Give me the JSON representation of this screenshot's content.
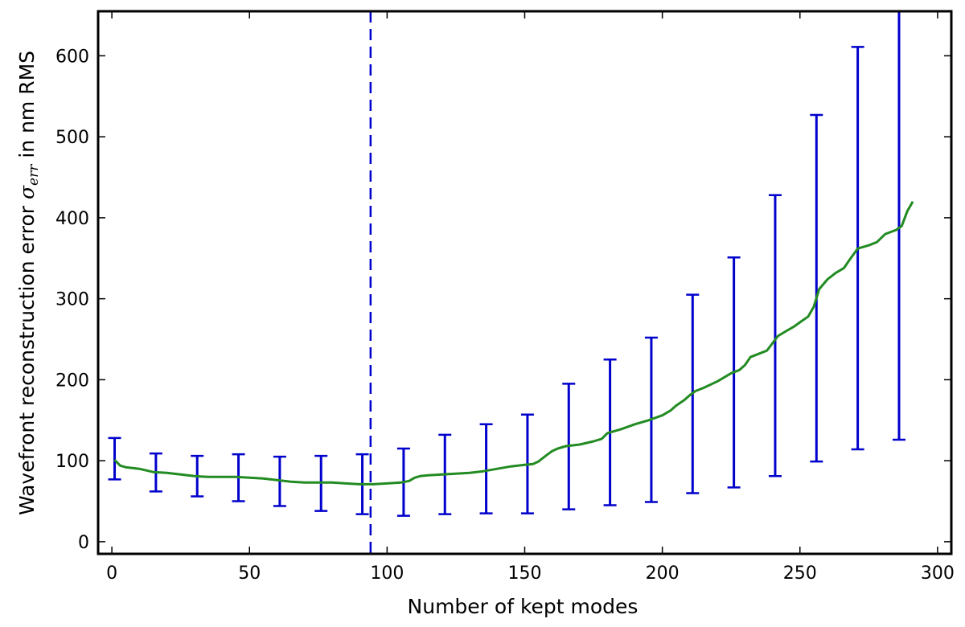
{
  "chart_data": {
    "type": "line",
    "xlabel": "Number of kept modes",
    "ylabel": {
      "prefix": "Wavefront reconstruction error ",
      "symbol": "σ",
      "subscript": "err",
      "suffix": " in nm RMS"
    },
    "xlim": [
      -5,
      305
    ],
    "ylim": [
      -15,
      655
    ],
    "xticks": [
      0,
      50,
      100,
      150,
      200,
      250,
      300
    ],
    "yticks": [
      0,
      100,
      200,
      300,
      400,
      500,
      600
    ],
    "grid": false,
    "colors": {
      "line": "#228b22",
      "errorbars": "#0000cc",
      "vline": "#0000cc",
      "frame": "#000000"
    },
    "vline": {
      "x": 94,
      "style": "dashed"
    },
    "series": [
      {
        "kind": "line",
        "x": [
          1,
          3,
          5,
          10,
          15,
          20,
          25,
          30,
          35,
          40,
          45,
          50,
          55,
          60,
          65,
          70,
          75,
          80,
          85,
          90,
          95,
          100,
          105,
          108,
          110,
          112,
          115,
          120,
          125,
          130,
          135,
          140,
          145,
          150,
          153,
          155,
          158,
          160,
          162,
          165,
          170,
          175,
          178,
          180,
          185,
          190,
          195,
          200,
          203,
          205,
          208,
          210,
          212,
          215,
          220,
          222,
          225,
          228,
          230,
          232,
          235,
          238,
          240,
          242,
          245,
          248,
          250,
          253,
          255,
          257,
          260,
          263,
          266,
          268,
          271,
          275,
          278,
          281,
          285,
          287,
          289,
          291
        ],
        "y": [
          101,
          94,
          92,
          90,
          86,
          85,
          83,
          81,
          80,
          80,
          80,
          79,
          78,
          76,
          74,
          73,
          73,
          73,
          72,
          71,
          71,
          72,
          73,
          75,
          79,
          81,
          82,
          83,
          84,
          85,
          87,
          90,
          93,
          95,
          96,
          99,
          107,
          112,
          115,
          118,
          120,
          124,
          127,
          134,
          139,
          145,
          150,
          156,
          162,
          168,
          175,
          181,
          186,
          190,
          198,
          202,
          208,
          212,
          218,
          228,
          232,
          236,
          245,
          254,
          260,
          266,
          271,
          278,
          290,
          312,
          324,
          332,
          338,
          348,
          362,
          366,
          370,
          380,
          385,
          390,
          408,
          420
        ]
      },
      {
        "kind": "errorbar",
        "x": [
          1,
          16,
          31,
          46,
          61,
          76,
          91,
          106,
          121,
          136,
          151,
          166,
          181,
          196,
          211,
          226,
          241,
          256,
          271,
          286
        ],
        "low": [
          77,
          62,
          56,
          50,
          44,
          38,
          34,
          32,
          34,
          35,
          35,
          40,
          45,
          49,
          60,
          67,
          81,
          99,
          114,
          126
        ],
        "high": [
          128,
          109,
          106,
          108,
          105,
          106,
          108,
          115,
          132,
          145,
          157,
          195,
          225,
          252,
          305,
          351,
          428,
          527,
          611,
          655
        ]
      }
    ]
  }
}
